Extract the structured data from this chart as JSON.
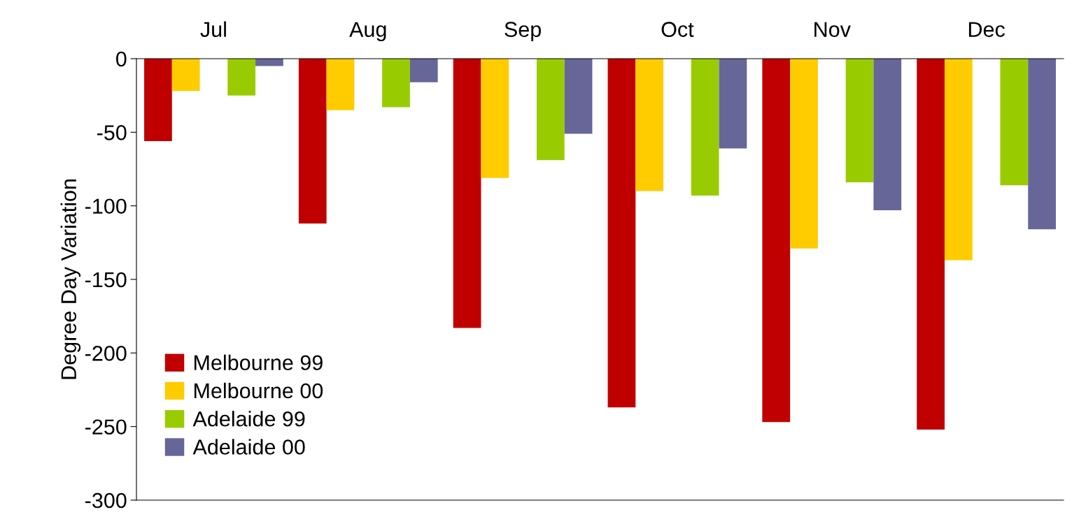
{
  "chart_data": {
    "type": "bar",
    "ylabel": "Degree Day Variation",
    "categories": [
      "Jul",
      "Aug",
      "Sep",
      "Oct",
      "Nov",
      "Dec"
    ],
    "series": [
      {
        "name": "Melbourne 99",
        "color": "#c00000",
        "values": [
          -56,
          -112,
          -183,
          -237,
          -247,
          -252
        ]
      },
      {
        "name": "Melbourne 00",
        "color": "#ffcc00",
        "values": [
          -22,
          -35,
          -81,
          -90,
          -129,
          -137
        ]
      },
      {
        "name": "Adelaide 99",
        "color": "#99cc00",
        "values": [
          -25,
          -33,
          -69,
          -93,
          -84,
          -86
        ]
      },
      {
        "name": "Adelaide 00",
        "color": "#666699",
        "values": [
          -5,
          -16,
          -51,
          -61,
          -103,
          -116
        ]
      }
    ],
    "ylim": [
      -300,
      0
    ],
    "yticks": [
      -300,
      -250,
      -200,
      -150,
      -100,
      -50,
      0
    ],
    "grid": false,
    "legend": "bottom left"
  }
}
